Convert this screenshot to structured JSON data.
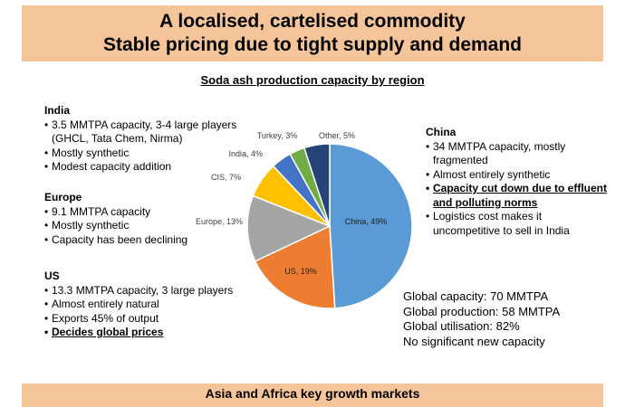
{
  "header": {
    "line1": "A localised, cartelised commodity",
    "line2": "Stable pricing due to tight supply and demand"
  },
  "chart_data": {
    "type": "pie",
    "title": "Soda ash production capacity by region",
    "categories": [
      "China",
      "US",
      "Europe",
      "CIS",
      "India",
      "Turkey",
      "Other"
    ],
    "values": [
      49,
      19,
      13,
      7,
      4,
      3,
      5
    ],
    "labels": [
      "China, 49%",
      "US, 19%",
      "Europe, 13%",
      "CIS, 7%",
      "India, 4%",
      "Turkey, 3%",
      "Other, 5%"
    ],
    "colors": [
      "#5b9bd5",
      "#ed7d31",
      "#a5a5a5",
      "#ffc000",
      "#4472c4",
      "#70ad47",
      "#264478"
    ],
    "start": "12 o'clock",
    "direction": "clockwise"
  },
  "regions": {
    "india": {
      "name": "India",
      "bullets": [
        "3.5 MMTPA capacity, 3-4 large players (GHCL, Tata Chem, Nirma)",
        "Mostly synthetic",
        "Modest capacity addition"
      ]
    },
    "europe": {
      "name": "Europe",
      "bullets": [
        "9.1 MMTPA capacity",
        "Mostly synthetic",
        "Capacity has been declining"
      ]
    },
    "us": {
      "name": "US",
      "bullets": [
        "13.3 MMTPA capacity, 3 large players",
        "Almost entirely natural",
        "Exports 45% of output",
        "Decides global prices"
      ]
    },
    "china": {
      "name": "China",
      "bullets": [
        "34 MMTPA capacity, mostly fragmented",
        "Almost entirely synthetic",
        "Capacity cut down due to effluent and polluting norms",
        "Logistics cost makes it uncompetitive to sell in India"
      ]
    }
  },
  "stats": [
    "Global capacity: 70 MMTPA",
    "Global production: 58 MMTPA",
    "Global utilisation: 82%",
    "No significant new capacity"
  ],
  "footer": {
    "text": "Asia and Africa key growth markets"
  }
}
